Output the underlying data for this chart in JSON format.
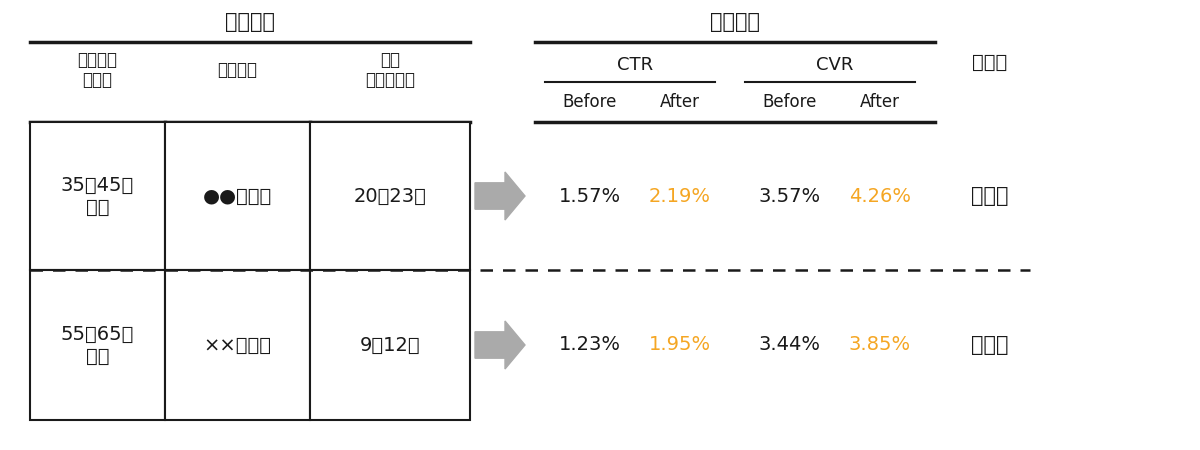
{
  "title_left": "配信条件",
  "title_right": "配信結果",
  "header_col1": "配信セグ\nメント",
  "header_col2": "対象施設",
  "header_col3": "配信\nタイミング",
  "subheader_ctr": "CTR",
  "subheader_cvr": "CVR",
  "col_labels": [
    "Before",
    "After",
    "Before",
    "After"
  ],
  "rows": [
    {
      "segment": "35～45歳\n男性",
      "facility": "●●ランド",
      "timing": "20～23時",
      "ctr_before": "1.57%",
      "ctr_after": "2.19%",
      "cvr_before": "3.57%",
      "cvr_after": "4.26%"
    },
    {
      "segment": "55～65歳\n男性",
      "facility": "××パーク",
      "timing": "9～12時",
      "ctr_before": "1.23%",
      "ctr_after": "1.95%",
      "cvr_before": "3.44%",
      "cvr_after": "3.85%"
    }
  ],
  "color_normal": "#1a1a1a",
  "color_after": "#f5a623",
  "bg_color": "#ffffff"
}
